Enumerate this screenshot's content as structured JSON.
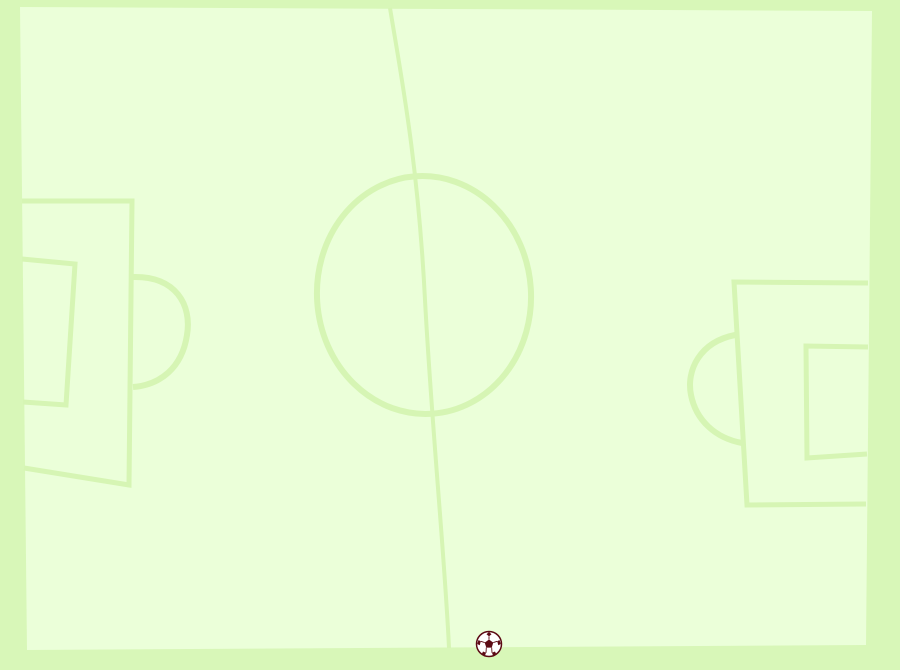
{
  "game": {
    "type": "soccer-field",
    "ball": {
      "icon": "soccer-ball-icon"
    }
  },
  "colors": {
    "outer_background": "#d8f7b8",
    "pitch_fill": "#ebffd9",
    "line_color": "#d6f5b4",
    "ball_dark": "#5c0a14",
    "ball_light": "#ffffff"
  }
}
